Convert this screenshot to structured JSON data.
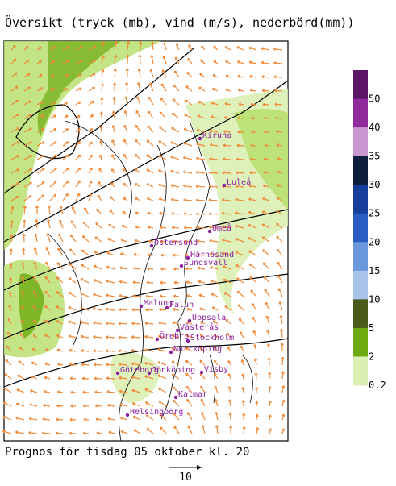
{
  "title": "Översikt (tryck (mb), vind (m/s), nederbörd(mm))",
  "footer": "Prognos för tisdag 05 oktober kl. 20",
  "scale_label": "10",
  "cities": [
    "Kiruna",
    "Luleå",
    "Umeå",
    "Östersund",
    "Härnösand",
    "Sundsvall",
    "Malung",
    "Falun",
    "Uppsala",
    "Västerås",
    "Örebro",
    "Stockholm",
    "Norrköping",
    "Göteborg",
    "Jönköping",
    "Visby",
    "Kalmar",
    "Helsingborg"
  ],
  "legend": [
    {
      "label": null,
      "color": "#5b1766"
    },
    {
      "label": "50",
      "color": "#8e2a9c"
    },
    {
      "label": "40",
      "color": "#c998d2"
    },
    {
      "label": "35",
      "color": "#0d1f3d"
    },
    {
      "label": "30",
      "color": "#173e9a"
    },
    {
      "label": "25",
      "color": "#2a5cc4"
    },
    {
      "label": "20",
      "color": "#6a98da"
    },
    {
      "label": "15",
      "color": "#a8c4e8"
    },
    {
      "label": "10",
      "color": "#4b5a1a"
    },
    {
      "label": "5",
      "color": "#6cab10"
    },
    {
      "label": "2",
      "color": "#b9e070"
    },
    {
      "label": "0.2",
      "color": "#dcefb2"
    }
  ]
}
